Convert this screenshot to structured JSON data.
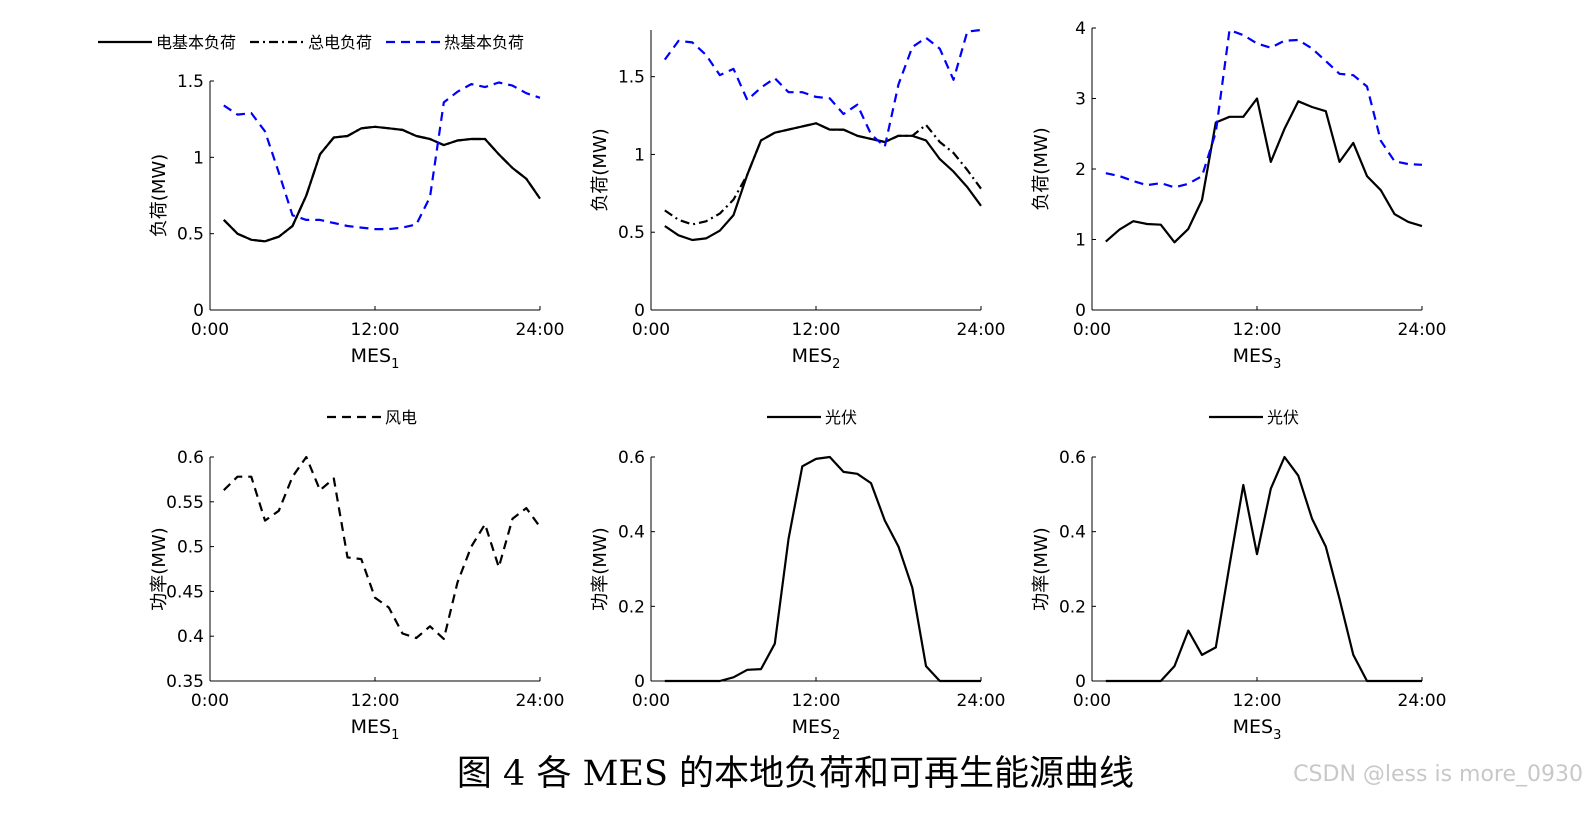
{
  "caption": "图 4 各 MES 的本地负荷和可再生能源曲线",
  "watermark": "CSDN @less is more_0930",
  "colors": {
    "black": "#000000",
    "blue": "#0000ff"
  },
  "x_ticks": [
    0,
    12,
    24
  ],
  "x_tick_labels": [
    "0:00",
    "12:00",
    "24:00"
  ],
  "hours": [
    1,
    2,
    3,
    4,
    5,
    6,
    7,
    8,
    9,
    10,
    11,
    12,
    13,
    14,
    15,
    16,
    17,
    18,
    19,
    20,
    21,
    22,
    23,
    24
  ],
  "chart_data": [
    {
      "id": "load-mes1",
      "type": "line",
      "xlabel": "MES",
      "xlabel_sub": "1",
      "ylabel": "负荷(MW)",
      "xlim": [
        0,
        24
      ],
      "ylim": [
        0,
        1.5
      ],
      "yticks": [
        0,
        0.5,
        1,
        1.5
      ],
      "ytick_labels": [
        "0",
        "0.5",
        "1",
        "1.5"
      ],
      "legend": "top",
      "grid": false,
      "series": [
        {
          "name": "电基本负荷",
          "style": "solid",
          "color": "#000000",
          "values": [
            0.59,
            0.5,
            0.46,
            0.45,
            0.48,
            0.55,
            0.75,
            1.02,
            1.13,
            1.14,
            1.19,
            1.2,
            1.19,
            1.18,
            1.14,
            1.12,
            1.08,
            1.11,
            1.12,
            1.12,
            1.02,
            0.93,
            0.86,
            0.73
          ]
        },
        {
          "name": "总电负荷",
          "style": "dashdot",
          "color": "#000000",
          "values": [
            0.59,
            0.5,
            0.46,
            0.45,
            0.48,
            0.55,
            0.75,
            1.02,
            1.13,
            1.14,
            1.19,
            1.2,
            1.19,
            1.18,
            1.14,
            1.12,
            1.08,
            1.11,
            1.12,
            1.12,
            1.02,
            0.93,
            0.86,
            0.73
          ]
        },
        {
          "name": "热基本负荷",
          "style": "dashed",
          "color": "#0000ff",
          "values": [
            1.34,
            1.28,
            1.29,
            1.17,
            0.9,
            0.62,
            0.59,
            0.59,
            0.57,
            0.55,
            0.54,
            0.53,
            0.53,
            0.54,
            0.56,
            0.74,
            1.36,
            1.43,
            1.48,
            1.46,
            1.49,
            1.47,
            1.42,
            1.39
          ]
        }
      ]
    },
    {
      "id": "load-mes2",
      "type": "line",
      "xlabel": "MES",
      "xlabel_sub": "2",
      "ylabel": "负荷(MW)",
      "xlim": [
        0,
        24
      ],
      "ylim": [
        0,
        1.8
      ],
      "yticks": [
        0,
        0.5,
        1,
        1.5
      ],
      "ytick_labels": [
        "0",
        "0.5",
        "1",
        "1.5"
      ],
      "grid": false,
      "series": [
        {
          "name": "电基本负荷",
          "style": "solid",
          "color": "#000000",
          "values": [
            0.54,
            0.48,
            0.45,
            0.46,
            0.51,
            0.61,
            0.87,
            1.09,
            1.14,
            1.16,
            1.18,
            1.2,
            1.16,
            1.16,
            1.12,
            1.1,
            1.08,
            1.12,
            1.12,
            1.09,
            0.97,
            0.89,
            0.79,
            0.67
          ]
        },
        {
          "name": "总电负荷",
          "style": "dashdot",
          "color": "#000000",
          "values": [
            0.64,
            0.58,
            0.55,
            0.57,
            0.62,
            0.71,
            0.87,
            1.09,
            1.14,
            1.16,
            1.18,
            1.2,
            1.16,
            1.16,
            1.12,
            1.1,
            1.08,
            1.12,
            1.12,
            1.19,
            1.08,
            1.01,
            0.9,
            0.78
          ]
        },
        {
          "name": "热基本负荷",
          "style": "dashed",
          "color": "#0000ff",
          "values": [
            1.61,
            1.73,
            1.72,
            1.64,
            1.51,
            1.55,
            1.35,
            1.43,
            1.49,
            1.4,
            1.4,
            1.37,
            1.36,
            1.26,
            1.32,
            1.13,
            1.05,
            1.45,
            1.69,
            1.75,
            1.68,
            1.48,
            1.79,
            1.8
          ]
        }
      ]
    },
    {
      "id": "load-mes3",
      "type": "line",
      "xlabel": "MES",
      "xlabel_sub": "3",
      "ylabel": "负荷(MW)",
      "xlim": [
        0,
        24
      ],
      "ylim": [
        0,
        4
      ],
      "yticks": [
        0,
        1,
        2,
        3,
        4
      ],
      "ytick_labels": [
        "0",
        "1",
        "2",
        "3",
        "4"
      ],
      "grid": false,
      "series": [
        {
          "name": "电基本负荷",
          "style": "solid",
          "color": "#000000",
          "values": [
            0.97,
            1.14,
            1.26,
            1.22,
            1.21,
            0.96,
            1.15,
            1.56,
            2.66,
            2.74,
            2.74,
            3.0,
            2.1,
            2.57,
            2.96,
            2.88,
            2.82,
            2.1,
            2.37,
            1.9,
            1.7,
            1.36,
            1.25,
            1.19
          ]
        },
        {
          "name": "热基本负荷",
          "style": "dashed",
          "color": "#0000ff",
          "values": [
            1.94,
            1.9,
            1.83,
            1.77,
            1.8,
            1.74,
            1.79,
            1.9,
            2.52,
            3.97,
            3.9,
            3.78,
            3.72,
            3.82,
            3.83,
            3.71,
            3.53,
            3.35,
            3.33,
            3.17,
            2.4,
            2.11,
            2.07,
            2.06
          ]
        }
      ]
    },
    {
      "id": "wind-mes1",
      "type": "line",
      "xlabel": "MES",
      "xlabel_sub": "1",
      "ylabel": "功率(MW)",
      "xlim": [
        0,
        24
      ],
      "ylim": [
        0.35,
        0.6
      ],
      "yticks": [
        0.35,
        0.4,
        0.45,
        0.5,
        0.55,
        0.6
      ],
      "ytick_labels": [
        "0.35",
        "0.4",
        "0.45",
        "0.5",
        "0.55",
        "0.6"
      ],
      "legend": "top",
      "grid": false,
      "series": [
        {
          "name": "风电",
          "style": "dashed",
          "color": "#000000",
          "values": [
            0.563,
            0.578,
            0.578,
            0.529,
            0.54,
            0.578,
            0.6,
            0.563,
            0.576,
            0.488,
            0.486,
            0.443,
            0.432,
            0.403,
            0.398,
            0.411,
            0.397,
            0.46,
            0.5,
            0.525,
            0.477,
            0.531,
            0.543,
            0.522
          ]
        }
      ]
    },
    {
      "id": "pv-mes2",
      "type": "line",
      "xlabel": "MES",
      "xlabel_sub": "2",
      "ylabel": "功率(MW)",
      "xlim": [
        0,
        24
      ],
      "ylim": [
        0,
        0.6
      ],
      "yticks": [
        0,
        0.2,
        0.4,
        0.6
      ],
      "ytick_labels": [
        "0",
        "0.2",
        "0.4",
        "0.6"
      ],
      "legend": "top",
      "grid": false,
      "series": [
        {
          "name": "光伏",
          "style": "solid",
          "color": "#000000",
          "values": [
            0,
            0,
            0,
            0,
            0,
            0.01,
            0.03,
            0.032,
            0.1,
            0.38,
            0.575,
            0.595,
            0.6,
            0.56,
            0.555,
            0.53,
            0.43,
            0.36,
            0.25,
            0.04,
            0,
            0,
            0,
            0
          ]
        }
      ]
    },
    {
      "id": "pv-mes3",
      "type": "line",
      "xlabel": "MES",
      "xlabel_sub": "3",
      "ylabel": "功率(MW)",
      "xlim": [
        0,
        24
      ],
      "ylim": [
        0,
        0.6
      ],
      "yticks": [
        0,
        0.2,
        0.4,
        0.6
      ],
      "ytick_labels": [
        "0",
        "0.2",
        "0.4",
        "0.6"
      ],
      "legend": "top",
      "grid": false,
      "series": [
        {
          "name": "光伏",
          "style": "solid",
          "color": "#000000",
          "values": [
            0,
            0,
            0,
            0,
            0,
            0.04,
            0.135,
            0.07,
            0.09,
            0.31,
            0.525,
            0.34,
            0.515,
            0.6,
            0.55,
            0.435,
            0.36,
            0.22,
            0.07,
            0,
            0,
            0,
            0,
            0
          ]
        }
      ]
    }
  ],
  "legends": [
    {
      "id": "legend-load",
      "entries": [
        "电基本负荷",
        "总电负荷",
        "热基本负荷"
      ],
      "styles": [
        "solid",
        "dashdot",
        "dashed"
      ],
      "colors": [
        "#000000",
        "#000000",
        "#0000ff"
      ]
    },
    {
      "id": "legend-wind",
      "entries": [
        "风电"
      ],
      "styles": [
        "dashed"
      ],
      "colors": [
        "#000000"
      ]
    },
    {
      "id": "legend-pv2",
      "entries": [
        "光伏"
      ],
      "styles": [
        "solid"
      ],
      "colors": [
        "#000000"
      ]
    },
    {
      "id": "legend-pv3",
      "entries": [
        "光伏"
      ],
      "styles": [
        "solid"
      ],
      "colors": [
        "#000000"
      ]
    }
  ]
}
